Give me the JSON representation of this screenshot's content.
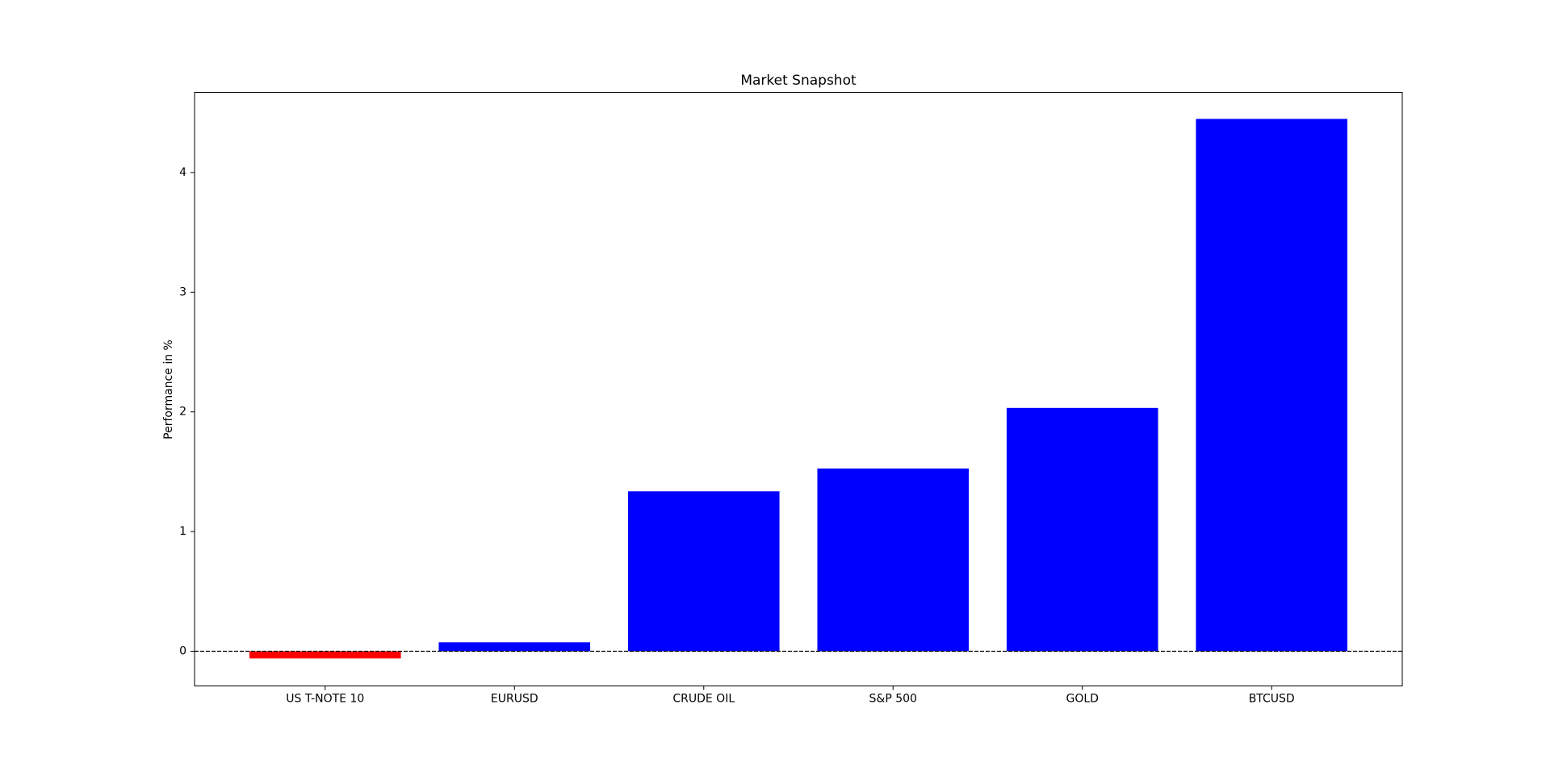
{
  "chart_data": {
    "type": "bar",
    "title": "Market Snapshot",
    "ylabel": "Performance in %",
    "categories": [
      "US T-NOTE 10",
      "EURUSD",
      "CRUDE OIL",
      "S&P 500",
      "GOLD",
      "BTCUSD"
    ],
    "values": [
      -0.06,
      0.075,
      1.336,
      1.527,
      2.033,
      4.448
    ],
    "colors": [
      "#ff0000",
      "#0000ff",
      "#0000ff",
      "#0000ff",
      "#0000ff",
      "#0000ff"
    ],
    "xlim": [
      -0.69,
      5.69
    ],
    "ylim": [
      -0.29,
      4.67
    ],
    "yticks": [
      0,
      1,
      2,
      3,
      4
    ],
    "hline": 0,
    "grid": false
  }
}
